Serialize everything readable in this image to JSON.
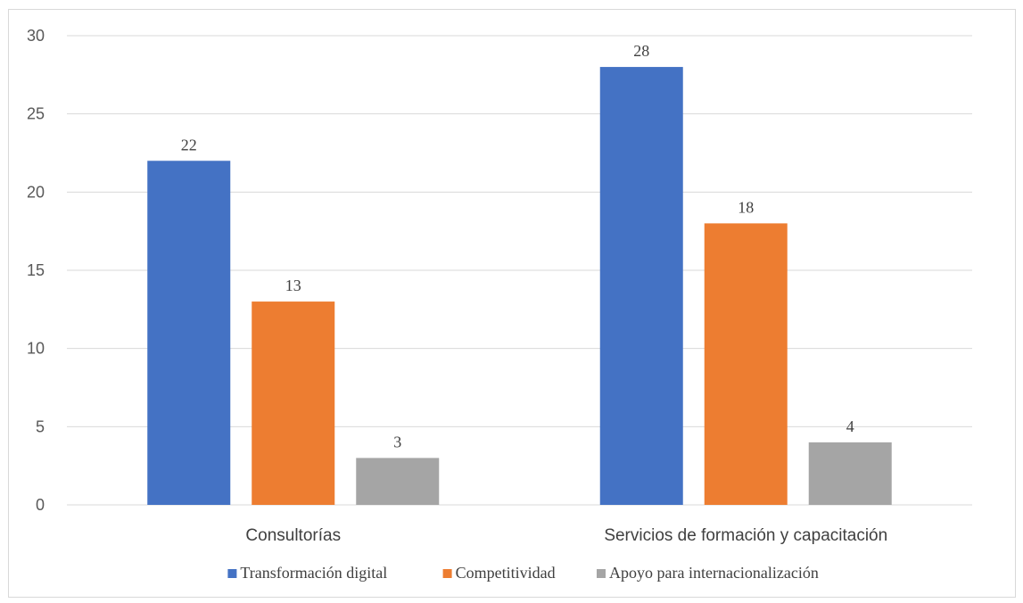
{
  "chart_data": {
    "type": "bar",
    "categories": [
      "Consultorías",
      "Servicios de formación y capacitación"
    ],
    "series": [
      {
        "name": "Transformación digital",
        "values": [
          22,
          28
        ],
        "color": "#4472c4"
      },
      {
        "name": "Competitividad",
        "values": [
          13,
          18
        ],
        "color": "#ed7d31"
      },
      {
        "name": "Apoyo para internacionalización",
        "values": [
          3,
          4
        ],
        "color": "#a5a5a5"
      }
    ],
    "y_ticks": [
      0,
      5,
      10,
      15,
      20,
      25,
      30
    ],
    "ylim": [
      0,
      30
    ],
    "grid": true,
    "legend": "bottom",
    "data_labels": true
  }
}
